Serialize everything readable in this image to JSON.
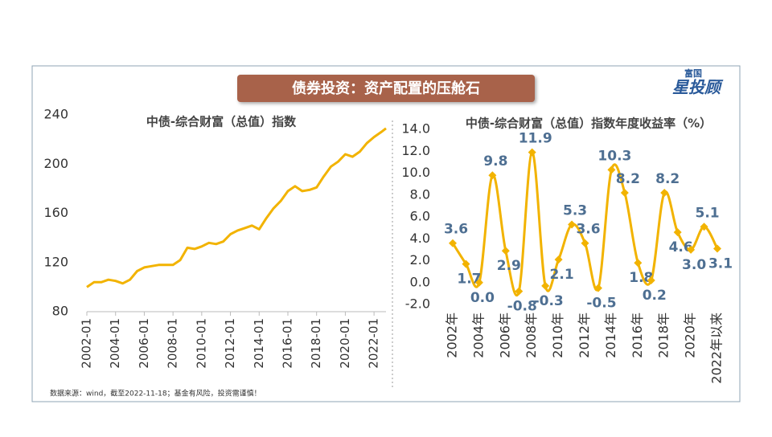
{
  "header": {
    "title": "债券投资：资产配置的压舱石",
    "logo_small": "富国",
    "logo_main": "星投顾"
  },
  "source": "数据来源：wind，截至2022-11-18；基金有风险，投资需谨慎！",
  "chart_data": [
    {
      "type": "line",
      "title": "中债-综合财富（总值）指数",
      "color": "#f2b300",
      "x": [
        "2002-01",
        "2002-07",
        "2003-01",
        "2003-07",
        "2004-01",
        "2004-07",
        "2005-01",
        "2005-07",
        "2006-01",
        "2006-07",
        "2007-01",
        "2007-07",
        "2008-01",
        "2008-07",
        "2009-01",
        "2009-07",
        "2010-01",
        "2010-07",
        "2011-01",
        "2011-07",
        "2012-01",
        "2012-07",
        "2013-01",
        "2013-07",
        "2014-01",
        "2014-07",
        "2015-01",
        "2015-07",
        "2016-01",
        "2016-07",
        "2017-01",
        "2017-07",
        "2018-01",
        "2018-07",
        "2019-01",
        "2019-07",
        "2020-01",
        "2020-07",
        "2021-01",
        "2021-07",
        "2022-01",
        "2022-07",
        "2022-11"
      ],
      "values": [
        100,
        104,
        104,
        106,
        105,
        103,
        106,
        113,
        116,
        117,
        118,
        118,
        118,
        122,
        132,
        131,
        133,
        136,
        135,
        137,
        143,
        146,
        148,
        150,
        147,
        156,
        164,
        170,
        178,
        182,
        178,
        179,
        181,
        190,
        198,
        202,
        208,
        206,
        210,
        217,
        222,
        226,
        229
      ],
      "xticks": [
        "2002-01",
        "2004-01",
        "2006-01",
        "2008-01",
        "2010-01",
        "2012-01",
        "2014-01",
        "2016-01",
        "2018-01",
        "2020-01",
        "2022-01"
      ],
      "ylim": [
        80,
        240
      ],
      "yticks": [
        80,
        120,
        160,
        200,
        240
      ]
    },
    {
      "type": "line",
      "title": "中债-综合财富（总值）指数年度收益率（%）",
      "color": "#f2b300",
      "smooth": true,
      "categories": [
        "2002年",
        null,
        "2004年",
        null,
        "2006年",
        null,
        "2008年",
        null,
        "2010年",
        null,
        "2012年",
        null,
        "2014年",
        null,
        "2016年",
        null,
        "2018年",
        null,
        "2020年",
        null,
        "2022年以来"
      ],
      "values": [
        3.6,
        1.7,
        0,
        9.8,
        2.9,
        -0.8,
        11.9,
        -0.3,
        2.1,
        5.3,
        3.6,
        -0.5,
        10.3,
        8.2,
        1.8,
        0.2,
        8.2,
        4.6,
        3.0,
        5.1,
        3.1
      ],
      "value_labels": [
        "3.6",
        "1.7",
        "0.0",
        "9.8",
        "2.9",
        "-0.8",
        "11.9",
        "-0.3",
        "2.1",
        "5.3",
        "3.6",
        "-0.5",
        "10.3",
        "8.2",
        "1.8",
        "0.2",
        "8.2",
        "4.6",
        "3.0",
        "5.1",
        "3.1"
      ],
      "ylim": [
        -2,
        14
      ],
      "yticks": [
        {
          "value": -2,
          "label": "-2.0"
        },
        {
          "value": 0,
          "label": "0.0"
        },
        {
          "value": 2,
          "label": "2.0"
        },
        {
          "value": 4,
          "label": "4.0"
        },
        {
          "value": 6,
          "label": "6.0"
        },
        {
          "value": 8,
          "label": "8.0"
        },
        {
          "value": 10,
          "label": "10.0"
        },
        {
          "value": 12,
          "label": "12.0"
        },
        {
          "value": 14,
          "label": "14.0"
        }
      ]
    }
  ]
}
